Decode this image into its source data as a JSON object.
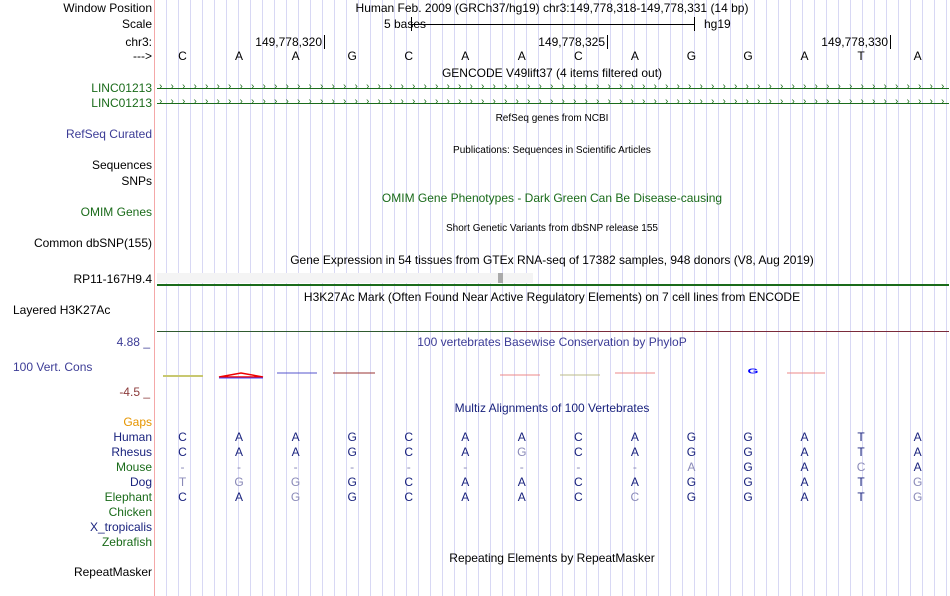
{
  "header": {
    "window_position_label": "Window Position",
    "scale_label": "Scale",
    "chr_label": "chr3:",
    "strand_label": "--->",
    "assembly": "Human Feb. 2009 (GRCh37/hg19)   chr3:149,778,318-149,778,331 (14 bp)",
    "scale_text": "5 bases",
    "scale_db": "hg19",
    "ticks": [
      "149,778,320",
      "149,778,325",
      "149,778,330"
    ]
  },
  "reference_bases": [
    "C",
    "A",
    "A",
    "G",
    "C",
    "A",
    "A",
    "C",
    "A",
    "G",
    "G",
    "A",
    "T",
    "A"
  ],
  "tracks": {
    "gencode": {
      "title": "GENCODE V49lift37 (4 items filtered out)",
      "items": [
        "LINC01213",
        "LINC01213"
      ]
    },
    "refseq": {
      "title": "RefSeq genes from NCBI",
      "label": "RefSeq Curated"
    },
    "publications": {
      "title": "Publications: Sequences in Scientific Articles",
      "label1": "Sequences",
      "label2": "SNPs"
    },
    "omim": {
      "title": "OMIM Gene Phenotypes - Dark Green Can Be Disease-causing",
      "label": "OMIM Genes"
    },
    "dbsnp": {
      "title": "Short Genetic Variants from dbSNP release 155",
      "label": "Common dbSNP(155)"
    },
    "gtex": {
      "title": "Gene Expression in 54 tissues from GTEx RNA-seq of 17382 samples, 948 donors (V8, Aug 2019)",
      "label": "RP11-167H9.4"
    },
    "h3k27ac": {
      "title": "H3K27Ac Mark (Often Found Near Active Regulatory Elements) on 7 cell lines from ENCODE",
      "label": "Layered H3K27Ac"
    },
    "phylop": {
      "title": "100 vertebrates Basewise Conservation by PhyloP",
      "label": "100 Vert. Cons",
      "max": "4.88 _",
      "min": "-4.5 _",
      "logo_letter": "G"
    },
    "multiz": {
      "title": "Multiz Alignments of 100 Vertebrates",
      "gaps_label": "Gaps",
      "species": [
        {
          "name": "Human",
          "color": "navy",
          "bases": [
            "C",
            "A",
            "A",
            "G",
            "C",
            "A",
            "A",
            "C",
            "A",
            "G",
            "G",
            "A",
            "T",
            "A"
          ]
        },
        {
          "name": "Rhesus",
          "color": "navy",
          "bases": [
            "C",
            "A",
            "A",
            "G",
            "C",
            "A",
            "G",
            "C",
            "A",
            "G",
            "G",
            "A",
            "T",
            "A"
          ]
        },
        {
          "name": "Mouse",
          "color": "green",
          "bases": [
            "-",
            "-",
            "-",
            "-",
            "-",
            "-",
            "-",
            "-",
            "-",
            "A",
            "G",
            "A",
            "C",
            "A"
          ]
        },
        {
          "name": "Dog",
          "color": "navy",
          "bases": [
            "T",
            "G",
            "G",
            "G",
            "C",
            "A",
            "A",
            "C",
            "A",
            "G",
            "G",
            "A",
            "T",
            "G"
          ]
        },
        {
          "name": "Elephant",
          "color": "green",
          "bases": [
            "C",
            "A",
            "G",
            "G",
            "C",
            "A",
            "A",
            "C",
            "C",
            "G",
            "G",
            "A",
            "T",
            "G"
          ]
        },
        {
          "name": "Chicken",
          "color": "green",
          "bases": []
        },
        {
          "name": "X_tropicalis",
          "color": "navy",
          "bases": []
        },
        {
          "name": "Zebrafish",
          "color": "green",
          "bases": []
        }
      ]
    },
    "repeatmasker": {
      "title": "Repeating Elements by RepeatMasker",
      "label": "RepeatMasker"
    }
  },
  "colors": {
    "match": "#1a237e",
    "mismatch": "#8a8ab8",
    "gene": "#1a6b1a",
    "gaps": "#e69500"
  }
}
